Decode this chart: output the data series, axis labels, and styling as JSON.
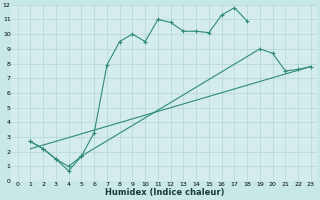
{
  "xlabel": "Humidex (Indice chaleur)",
  "line_color": "#2e8b74",
  "bg_color": "#c8e8e8",
  "grid_color": "#b0d0d0",
  "plot_bg": "#d4ecec",
  "xlim": [
    -0.5,
    23.5
  ],
  "ylim": [
    0,
    12
  ],
  "line1_x": [
    1,
    2,
    3,
    4,
    5,
    6,
    7,
    8,
    9,
    10,
    11,
    12,
    13,
    14,
    15,
    16,
    17,
    18
  ],
  "line1_y": [
    2.7,
    2.2,
    1.5,
    1.0,
    1.7,
    3.3,
    7.9,
    9.5,
    10.0,
    9.5,
    11.0,
    10.8,
    10.2,
    10.2,
    10.1,
    11.3,
    11.8,
    10.9
  ],
  "line2a_x": [
    1,
    2,
    3,
    4,
    5
  ],
  "line2a_y": [
    2.7,
    2.2,
    1.5,
    0.7,
    1.7
  ],
  "line2b_x": [
    5,
    19,
    20,
    21,
    22,
    23
  ],
  "line2b_y": [
    1.7,
    9.0,
    8.7,
    7.5,
    7.6,
    7.8
  ],
  "line3_x": [
    1,
    23
  ],
  "line3_y": [
    2.2,
    7.8
  ],
  "marker_size": 3.0,
  "line_width": 0.8,
  "xlabel_fontsize": 6.0,
  "tick_fontsize": 4.5
}
